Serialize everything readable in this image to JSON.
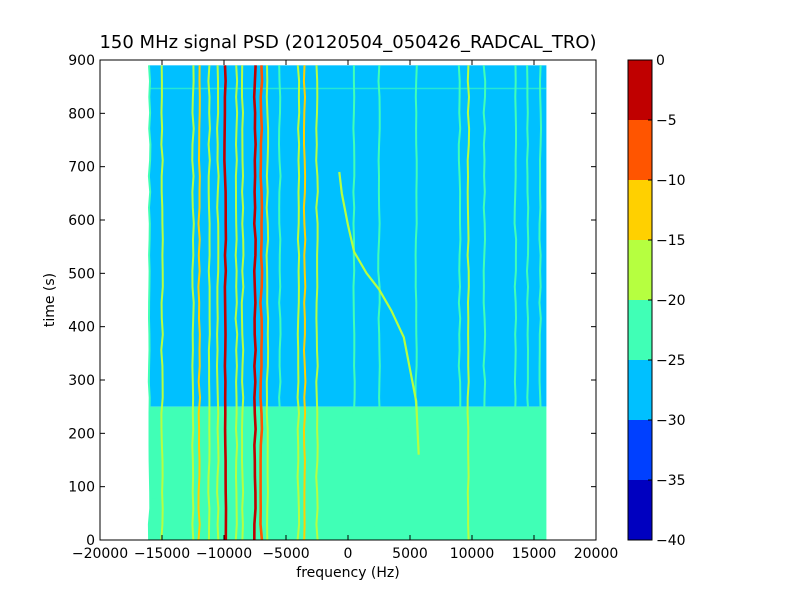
{
  "chart_data": {
    "type": "heatmap",
    "title": "150 MHz signal PSD (20120504_050426_RADCAL_TRO)",
    "xlabel": "frequency (Hz)",
    "ylabel": "time (s)",
    "xlim": [
      -20000,
      20000
    ],
    "ylim": [
      0,
      900
    ],
    "x_ticks": [
      -20000,
      -15000,
      -10000,
      -5000,
      0,
      5000,
      10000,
      15000,
      20000
    ],
    "y_ticks": [
      0,
      100,
      200,
      300,
      400,
      500,
      600,
      700,
      800,
      900
    ],
    "data_extent": {
      "freq_min_hz": -16000,
      "freq_max_hz": 16000,
      "time_min_s": 0,
      "time_max_s": 890
    },
    "background_levels": [
      {
        "time_range_s": [
          250,
          890
        ],
        "level_db": -27.5
      },
      {
        "time_range_s": [
          0,
          250
        ],
        "level_db": -22.5,
        "freq_range_hz": [
          5000,
          16000
        ]
      },
      {
        "time_range_s": [
          0,
          250
        ],
        "level_db": -25,
        "freq_range_hz": [
          -16000,
          5000
        ],
        "note": "mixed -22.5/-27.5 speckle"
      }
    ],
    "carriers": [
      {
        "freq_hz": -16000,
        "t_start": 0,
        "t_end": 890,
        "level_db": -22.5
      },
      {
        "freq_hz": -15000,
        "t_start": 0,
        "t_end": 890,
        "level_db": -17.5
      },
      {
        "freq_hz": -12500,
        "t_start": 0,
        "t_end": 890,
        "level_db": -17.5
      },
      {
        "freq_hz": -12000,
        "t_start": 0,
        "t_end": 890,
        "level_db": -12.5
      },
      {
        "freq_hz": -11200,
        "t_start": 0,
        "t_end": 890,
        "level_db": -17.5
      },
      {
        "freq_hz": -10500,
        "t_start": 0,
        "t_end": 890,
        "level_db": -17.5
      },
      {
        "freq_hz": -9900,
        "t_start": 0,
        "t_end": 890,
        "level_db": -2.5
      },
      {
        "freq_hz": -9000,
        "t_start": 0,
        "t_end": 890,
        "level_db": -17.5
      },
      {
        "freq_hz": -8500,
        "t_start": 0,
        "t_end": 890,
        "level_db": -17.5
      },
      {
        "freq_hz": -7500,
        "t_start": 0,
        "t_end": 890,
        "level_db": -2.5
      },
      {
        "freq_hz": -7000,
        "t_start": 0,
        "t_end": 890,
        "level_db": -7.5
      },
      {
        "freq_hz": -6500,
        "t_start": 0,
        "t_end": 890,
        "level_db": -17.5
      },
      {
        "freq_hz": -5500,
        "t_start": 0,
        "t_end": 890,
        "level_db": -22.5
      },
      {
        "freq_hz": -4000,
        "t_start": 0,
        "t_end": 890,
        "level_db": -17.5
      },
      {
        "freq_hz": -3500,
        "t_start": 0,
        "t_end": 890,
        "level_db": -12.5
      },
      {
        "freq_hz": -2500,
        "t_start": 0,
        "t_end": 890,
        "level_db": -17.5
      },
      {
        "freq_hz": 500,
        "t_start": 0,
        "t_end": 890,
        "level_db": -22.5
      },
      {
        "freq_hz": 2500,
        "t_start": 0,
        "t_end": 890,
        "level_db": -22.5
      },
      {
        "freq_hz": 5500,
        "t_start": 0,
        "t_end": 890,
        "level_db": -22.5
      },
      {
        "freq_hz": 9000,
        "t_start": 0,
        "t_end": 890,
        "level_db": -22.5
      },
      {
        "freq_hz": 9700,
        "t_start": 0,
        "t_end": 890,
        "level_db": -17.5
      },
      {
        "freq_hz": 11000,
        "t_start": 0,
        "t_end": 890,
        "level_db": -22.5
      },
      {
        "freq_hz": 13500,
        "t_start": 0,
        "t_end": 890,
        "level_db": -22.5
      },
      {
        "freq_hz": 14500,
        "t_start": 0,
        "t_end": 890,
        "level_db": -22.5
      },
      {
        "freq_hz": 15500,
        "t_start": 0,
        "t_end": 890,
        "level_db": -22.5
      }
    ],
    "sweep": {
      "level_db": -17.5,
      "points": [
        {
          "freq_hz": -700,
          "time_s": 690
        },
        {
          "freq_hz": -500,
          "time_s": 650
        },
        {
          "freq_hz": 0,
          "time_s": 590
        },
        {
          "freq_hz": 500,
          "time_s": 540
        },
        {
          "freq_hz": 1500,
          "time_s": 500
        },
        {
          "freq_hz": 2500,
          "time_s": 470
        },
        {
          "freq_hz": 3500,
          "time_s": 430
        },
        {
          "freq_hz": 4500,
          "time_s": 380
        },
        {
          "freq_hz": 5000,
          "time_s": 320
        },
        {
          "freq_hz": 5500,
          "time_s": 260
        },
        {
          "freq_hz": 5700,
          "time_s": 160
        }
      ]
    },
    "colorbar": {
      "levels": [
        -40,
        -35,
        -30,
        -25,
        -20,
        -15,
        -10,
        -5,
        0
      ],
      "colors": [
        "#0000c0",
        "#0040ff",
        "#00c0ff",
        "#40ffb6",
        "#b6ff40",
        "#ffd000",
        "#ff5500",
        "#c00000"
      ],
      "tick_labels": [
        "−40",
        "−35",
        "−30",
        "−25",
        "−20",
        "−15",
        "−10",
        "−5",
        "0"
      ]
    },
    "grid": false,
    "legend": "none"
  }
}
